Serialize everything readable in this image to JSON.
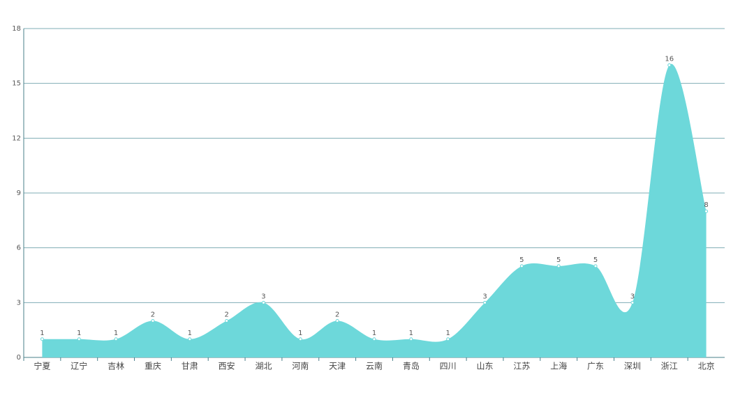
{
  "chart_data": {
    "type": "area",
    "categories": [
      "宁夏",
      "辽宁",
      "吉林",
      "重庆",
      "甘肃",
      "西安",
      "湖北",
      "河南",
      "天津",
      "云南",
      "青岛",
      "四川",
      "山东",
      "江苏",
      "上海",
      "广东",
      "深圳",
      "浙江",
      "北京"
    ],
    "values": [
      1,
      1,
      1,
      2,
      1,
      2,
      3,
      1,
      2,
      1,
      1,
      1,
      3,
      5,
      5,
      5,
      3,
      16,
      8
    ],
    "color": "#6dd8da",
    "ylim": [
      0,
      18
    ],
    "yticks": [
      0,
      3,
      6,
      9,
      12,
      15,
      18
    ],
    "grid": true
  }
}
